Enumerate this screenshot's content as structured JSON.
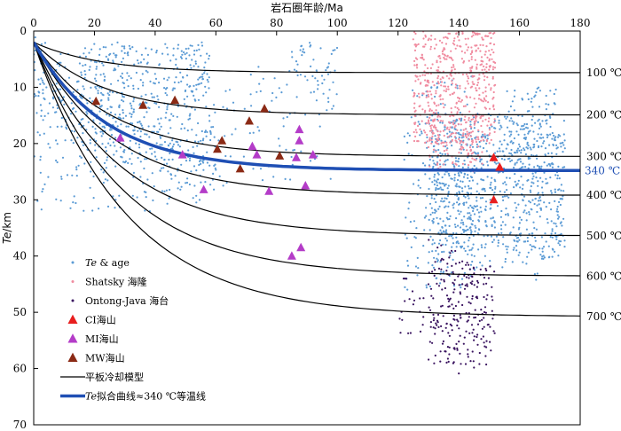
{
  "chart_data": {
    "type": "scatter",
    "x_axis": {
      "label": "岩石圈年龄/Ma",
      "position": "top",
      "min": 0,
      "max": 180,
      "ticks": [
        0,
        20,
        40,
        60,
        80,
        100,
        120,
        140,
        160,
        180
      ]
    },
    "y_axis": {
      "label": "Te/km",
      "label_italic_part": "Te",
      "label_unit_part": "/km",
      "min": 0,
      "max": 70,
      "inverted": true,
      "ticks": [
        0,
        10,
        20,
        30,
        40,
        50,
        60,
        70
      ]
    },
    "isotherm_label_suffix": "℃",
    "isotherms": [
      {
        "temp": 100,
        "label": "100 ℃",
        "asymptote_km": 7.4
      },
      {
        "temp": 200,
        "label": "200 ℃",
        "asymptote_km": 14.9
      },
      {
        "temp": 300,
        "label": "300 ℃",
        "asymptote_km": 22.3
      },
      {
        "temp": 400,
        "label": "400 ℃",
        "asymptote_km": 29.2
      },
      {
        "temp": 500,
        "label": "500 ℃",
        "asymptote_km": 36.4
      },
      {
        "temp": 600,
        "label": "600 ℃",
        "asymptote_km": 43.6
      },
      {
        "temp": 700,
        "label": "700 ℃",
        "asymptote_km": 50.8
      }
    ],
    "fit_curve": {
      "temp": 340,
      "label": "340 ℃",
      "asymptote_km": 24.8,
      "color": "#1f4fb4"
    },
    "marker_series": [
      {
        "name": "CI海山",
        "color": "#e81e1e",
        "points": [
          [
            151.5,
            22.5
          ],
          [
            153.5,
            24.2
          ],
          [
            151.5,
            30.0
          ]
        ]
      },
      {
        "name": "MI海山",
        "color": "#b43cc8",
        "points": [
          [
            28.5,
            19.0
          ],
          [
            49,
            22.0
          ],
          [
            56,
            28.2
          ],
          [
            72,
            20.5
          ],
          [
            73.5,
            22.0
          ],
          [
            77.5,
            28.5
          ],
          [
            85,
            40.0
          ],
          [
            86.5,
            22.5
          ],
          [
            87.5,
            17.5
          ],
          [
            87.5,
            19.5
          ],
          [
            88,
            38.5
          ],
          [
            89.5,
            27.5
          ],
          [
            92,
            22.0
          ]
        ]
      },
      {
        "name": "MW海山",
        "color": "#8b2a15",
        "points": [
          [
            20.5,
            12.5
          ],
          [
            36,
            13.2
          ],
          [
            46.5,
            12.3
          ],
          [
            60.5,
            21.0
          ],
          [
            62,
            19.5
          ],
          [
            68,
            24.5
          ],
          [
            71,
            16.0
          ],
          [
            76,
            13.8
          ],
          [
            81,
            22.2
          ]
        ]
      }
    ],
    "scatter_series": [
      {
        "name": "Te & age",
        "color": "#5b9bd5"
      },
      {
        "name": "Shatsky 海隆",
        "color": "#f08ca0"
      },
      {
        "name": "Ontong-Java 海台",
        "color": "#3a1460"
      }
    ],
    "legend": {
      "placement": "bottom-left",
      "entries": [
        {
          "label": "Te & age",
          "italic_part": "Te",
          "rest": " & age"
        },
        {
          "label": "Shatsky 海隆",
          "italic_part": "",
          "rest": "Shatsky 海隆"
        },
        {
          "label": "Ontong-Java 海台",
          "italic_part": "",
          "rest": "Ontong-Java 海台"
        },
        {
          "label": "CI海山",
          "italic_part": "",
          "rest": "CI海山"
        },
        {
          "label": "MI海山",
          "italic_part": "",
          "rest": "MI海山"
        },
        {
          "label": "MW海山",
          "italic_part": "",
          "rest": "MW海山"
        },
        {
          "label": "平板冷却模型",
          "italic_part": "",
          "rest": "平板冷却模型"
        },
        {
          "label": "Te拟合曲线≈340 ℃等温线",
          "italic_part": "Te",
          "rest": "拟合曲线≈340 ℃等温线"
        }
      ]
    }
  }
}
